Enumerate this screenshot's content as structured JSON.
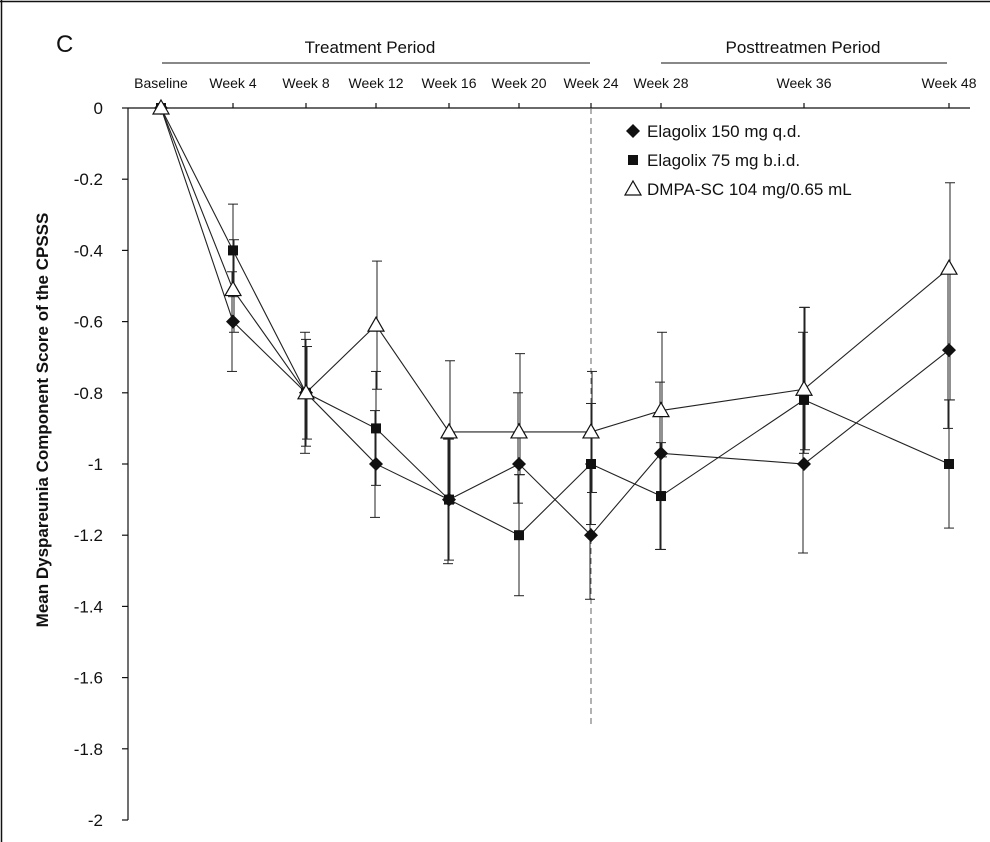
{
  "chart_data": {
    "type": "line",
    "panel_label": "C",
    "ylabel": "Mean Dyspareunia Component Score of the CPSSS",
    "xlabel": "",
    "ylim": [
      -2,
      0
    ],
    "yticks": [
      "0",
      "-0.2",
      "-0.4",
      "-0.6",
      "-0.8",
      "-1",
      "-1.2",
      "-1.4",
      "-1.6",
      "-1.8",
      "-2"
    ],
    "ytick_values": [
      0,
      -0.2,
      -0.4,
      -0.6,
      -0.8,
      -1,
      -1.2,
      -1.4,
      -1.6,
      -1.8,
      -2
    ],
    "categories": [
      "Baseline",
      "Week 4",
      "Week 8",
      "Week 12",
      "Week 16",
      "Week 20",
      "Week 24",
      "Week 28",
      "Week 36",
      "Week 48"
    ],
    "period_labels": [
      "Treatment Period",
      "Posttreatmen Period"
    ],
    "legend_position": "top-right",
    "grid": false,
    "series": [
      {
        "name": "Elagolix 150 mg q.d.",
        "marker": "diamond",
        "values": [
          0,
          -0.6,
          -0.8,
          -1.0,
          -1.1,
          -1.0,
          -1.2,
          -0.97,
          -1.0,
          -0.68
        ],
        "err_low": [
          0,
          -0.74,
          -0.97,
          -1.15,
          -1.28,
          -1.11,
          -1.38,
          -1.24,
          -1.25,
          -0.9
        ],
        "err_high": [
          0,
          -0.46,
          -0.63,
          -0.85,
          -0.93,
          -0.8,
          -1.0,
          -0.77,
          -0.63,
          -0.46
        ]
      },
      {
        "name": "Elagolix 75 mg b.i.d.",
        "marker": "square",
        "values": [
          0,
          -0.4,
          -0.8,
          -0.9,
          -1.1,
          -1.2,
          -1.0,
          -1.09,
          -0.82,
          -1.0
        ],
        "err_low": [
          0,
          -0.53,
          -0.95,
          -1.06,
          -1.27,
          -1.37,
          -1.17,
          -1.24,
          -0.97,
          -1.18
        ],
        "err_high": [
          0,
          -0.27,
          -0.65,
          -0.74,
          -0.93,
          -1.03,
          -0.83,
          -0.94,
          -0.56,
          -0.82
        ]
      },
      {
        "name": "DMPA-SC 104 mg/0.65 mL",
        "marker": "triangle",
        "values": [
          0,
          -0.51,
          -0.8,
          -0.61,
          -0.91,
          -0.91,
          -0.91,
          -0.85,
          -0.79,
          -0.45
        ],
        "err_low": [
          0,
          -0.63,
          -0.93,
          -0.79,
          -1.11,
          -1.03,
          -1.08,
          -0.98,
          -0.96,
          -0.82
        ],
        "err_high": [
          0,
          -0.37,
          -0.67,
          -0.43,
          -0.71,
          -0.69,
          -0.74,
          -0.63,
          -0.56,
          -0.21
        ]
      }
    ]
  }
}
